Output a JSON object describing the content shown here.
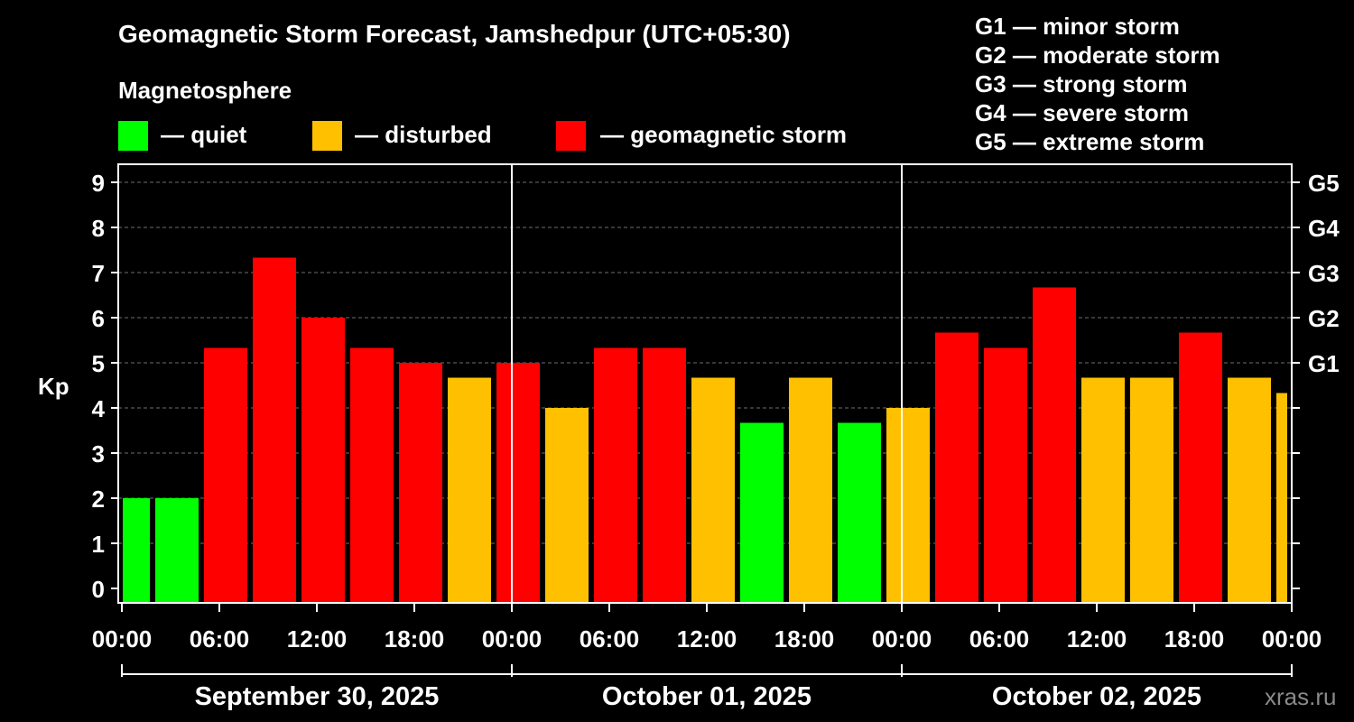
{
  "title": "Geomagnetic Storm Forecast, Jamshedpur (UTC+05:30)",
  "legend": {
    "heading": "Magnetosphere",
    "items": [
      {
        "label": "— quiet",
        "color": "#00ff00"
      },
      {
        "label": "— disturbed",
        "color": "#ffc000"
      },
      {
        "label": "— geomagnetic storm",
        "color": "#ff0000"
      }
    ]
  },
  "g_levels": [
    "G1 — minor storm",
    "G2 — moderate storm",
    "G3 — strong storm",
    "G4 — severe storm",
    "G5 — extreme storm"
  ],
  "watermark": "xras.ru",
  "chart_data": {
    "type": "bar",
    "ylabel": "Kp",
    "ylim": [
      0,
      9
    ],
    "y_ticks": [
      "0",
      "1",
      "2",
      "3",
      "4",
      "5",
      "6",
      "7",
      "8",
      "9"
    ],
    "right_axis_ticks": [
      {
        "kp": 5,
        "label": "G1"
      },
      {
        "kp": 6,
        "label": "G2"
      },
      {
        "kp": 7,
        "label": "G3"
      },
      {
        "kp": 8,
        "label": "G4"
      },
      {
        "kp": 9,
        "label": "G5"
      }
    ],
    "x_tick_labels": [
      "00:00",
      "06:00",
      "12:00",
      "18:00",
      "00:00",
      "06:00",
      "12:00",
      "18:00",
      "00:00",
      "06:00",
      "12:00",
      "18:00",
      "00:00",
      "06:00",
      "12:00",
      "18:00",
      "00:00"
    ],
    "day_labels": [
      "September 30, 2025",
      "October 01, 2025",
      "October 02, 2025"
    ],
    "grid": "horizontal dashed",
    "bars": [
      {
        "start_hour": 0,
        "end_hour": 2,
        "kp": 2.0,
        "level": "quiet"
      },
      {
        "start_hour": 2,
        "end_hour": 5,
        "kp": 2.0,
        "level": "quiet"
      },
      {
        "start_hour": 5,
        "end_hour": 8,
        "kp": 5.33,
        "level": "storm"
      },
      {
        "start_hour": 8,
        "end_hour": 11,
        "kp": 7.33,
        "level": "storm"
      },
      {
        "start_hour": 11,
        "end_hour": 14,
        "kp": 6.0,
        "level": "storm"
      },
      {
        "start_hour": 14,
        "end_hour": 17,
        "kp": 5.33,
        "level": "storm"
      },
      {
        "start_hour": 17,
        "end_hour": 20,
        "kp": 5.0,
        "level": "storm"
      },
      {
        "start_hour": 20,
        "end_hour": 23,
        "kp": 4.67,
        "level": "disturbed"
      },
      {
        "start_hour": 23,
        "end_hour": 26,
        "kp": 5.0,
        "level": "storm"
      },
      {
        "start_hour": 26,
        "end_hour": 29,
        "kp": 4.0,
        "level": "disturbed"
      },
      {
        "start_hour": 29,
        "end_hour": 32,
        "kp": 5.33,
        "level": "storm"
      },
      {
        "start_hour": 32,
        "end_hour": 35,
        "kp": 5.33,
        "level": "storm"
      },
      {
        "start_hour": 35,
        "end_hour": 38,
        "kp": 4.67,
        "level": "disturbed"
      },
      {
        "start_hour": 38,
        "end_hour": 41,
        "kp": 3.67,
        "level": "quiet"
      },
      {
        "start_hour": 41,
        "end_hour": 44,
        "kp": 4.67,
        "level": "disturbed"
      },
      {
        "start_hour": 44,
        "end_hour": 47,
        "kp": 3.67,
        "level": "quiet"
      },
      {
        "start_hour": 47,
        "end_hour": 50,
        "kp": 4.0,
        "level": "disturbed"
      },
      {
        "start_hour": 50,
        "end_hour": 53,
        "kp": 5.67,
        "level": "storm"
      },
      {
        "start_hour": 53,
        "end_hour": 56,
        "kp": 5.33,
        "level": "storm"
      },
      {
        "start_hour": 56,
        "end_hour": 59,
        "kp": 6.67,
        "level": "storm"
      },
      {
        "start_hour": 59,
        "end_hour": 62,
        "kp": 4.67,
        "level": "disturbed"
      },
      {
        "start_hour": 62,
        "end_hour": 65,
        "kp": 4.67,
        "level": "disturbed"
      },
      {
        "start_hour": 65,
        "end_hour": 68,
        "kp": 5.67,
        "level": "storm"
      },
      {
        "start_hour": 68,
        "end_hour": 71,
        "kp": 4.67,
        "level": "disturbed"
      },
      {
        "start_hour": 71,
        "end_hour": 72,
        "kp": 4.33,
        "level": "disturbed"
      }
    ],
    "level_colors": {
      "quiet": "#00ff00",
      "disturbed": "#ffc000",
      "storm": "#ff0000"
    }
  }
}
